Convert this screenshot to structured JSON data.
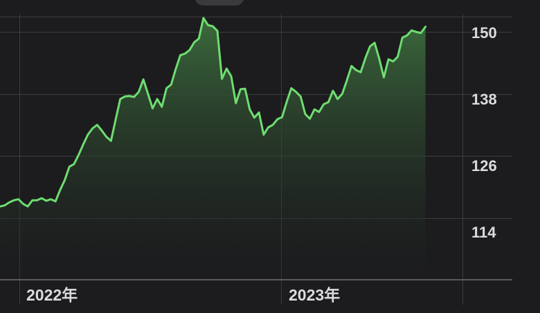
{
  "chart_data": {
    "type": "area",
    "x_tick_labels": [
      "2022年",
      "2023年"
    ],
    "y_ticks": [
      150,
      138,
      126,
      114
    ],
    "ylim": [
      102,
      153.5
    ],
    "xlim": [
      0,
      100
    ],
    "grid": true,
    "legend": "none",
    "colors": {
      "line": "#6fdd71",
      "fill_top": "#3b6b3c",
      "fill_bottom": "#1c1c1e",
      "grid": "#3d3d40",
      "text": "#dcdcde",
      "background": "#1c1c1e"
    },
    "series": [
      {
        "values": [
          [
            0,
            116.2
          ],
          [
            1,
            116.4
          ],
          [
            2,
            117.0
          ],
          [
            3,
            117.4
          ],
          [
            4,
            117.6
          ],
          [
            5,
            116.7
          ],
          [
            6,
            116.2
          ],
          [
            7,
            117.4
          ],
          [
            8,
            117.4
          ],
          [
            9,
            117.8
          ],
          [
            10,
            117.3
          ],
          [
            11,
            117.6
          ],
          [
            12,
            117.2
          ],
          [
            13,
            119.4
          ],
          [
            14,
            121.3
          ],
          [
            15,
            123.9
          ],
          [
            16,
            124.4
          ],
          [
            17,
            126.2
          ],
          [
            18,
            128.2
          ],
          [
            19,
            130.1
          ],
          [
            20,
            131.3
          ],
          [
            21,
            132.0
          ],
          [
            22,
            130.9
          ],
          [
            23,
            129.7
          ],
          [
            24,
            128.9
          ],
          [
            25,
            133.0
          ],
          [
            26,
            137.0
          ],
          [
            27,
            137.5
          ],
          [
            28,
            137.6
          ],
          [
            29,
            137.4
          ],
          [
            30,
            138.4
          ],
          [
            31,
            140.8
          ],
          [
            32,
            138.0
          ],
          [
            33,
            135.2
          ],
          [
            34,
            137.0
          ],
          [
            35,
            135.5
          ],
          [
            36,
            139.1
          ],
          [
            37,
            139.8
          ],
          [
            38,
            142.8
          ],
          [
            39,
            145.5
          ],
          [
            40,
            145.8
          ],
          [
            41,
            146.5
          ],
          [
            42,
            148.0
          ],
          [
            43,
            148.7
          ],
          [
            44,
            152.7
          ],
          [
            45,
            151.3
          ],
          [
            46,
            151.1
          ],
          [
            47,
            150.2
          ],
          [
            48,
            140.9
          ],
          [
            49,
            142.9
          ],
          [
            50,
            141.4
          ],
          [
            51,
            136.2
          ],
          [
            52,
            138.9
          ],
          [
            53,
            139.0
          ],
          [
            54,
            135.0
          ],
          [
            55,
            133.4
          ],
          [
            56,
            134.4
          ],
          [
            57,
            130.1
          ],
          [
            58,
            131.5
          ],
          [
            59,
            132.0
          ],
          [
            60,
            133.1
          ],
          [
            61,
            133.5
          ],
          [
            62,
            136.5
          ],
          [
            63,
            139.1
          ],
          [
            64,
            138.4
          ],
          [
            65,
            137.5
          ],
          [
            66,
            134.1
          ],
          [
            67,
            133.2
          ],
          [
            68,
            135.0
          ],
          [
            69,
            134.5
          ],
          [
            70,
            136.0
          ],
          [
            71,
            136.4
          ],
          [
            72,
            138.6
          ],
          [
            73,
            137.0
          ],
          [
            74,
            138.0
          ],
          [
            75,
            140.6
          ],
          [
            76,
            143.4
          ],
          [
            77,
            142.6
          ],
          [
            78,
            142.2
          ],
          [
            79,
            144.9
          ],
          [
            80,
            147.2
          ],
          [
            81,
            147.9
          ],
          [
            82,
            144.8
          ],
          [
            83,
            141.2
          ],
          [
            84,
            144.7
          ],
          [
            85,
            144.3
          ],
          [
            86,
            145.2
          ],
          [
            87,
            148.9
          ],
          [
            88,
            149.3
          ],
          [
            89,
            150.3
          ],
          [
            90,
            150.0
          ],
          [
            91,
            149.8
          ],
          [
            92,
            151.0
          ]
        ]
      }
    ]
  }
}
